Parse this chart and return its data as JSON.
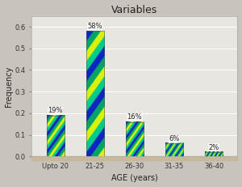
{
  "categories": [
    "Upto 20",
    "21-25",
    "26-30",
    "31-35",
    "36-40"
  ],
  "values": [
    0.19,
    0.58,
    0.16,
    0.06,
    0.02
  ],
  "labels": [
    "19%",
    "58%",
    "16%",
    "6%",
    "2%"
  ],
  "title": "Variables",
  "xlabel": "AGE (years)",
  "ylabel": "Frequency",
  "ylim": [
    0.0,
    0.65
  ],
  "yticks": [
    0.0,
    0.1,
    0.2,
    0.3,
    0.4,
    0.5,
    0.6
  ],
  "fig_bg_color": "#c8c4bc",
  "plot_bg_color": "#e8e6e0",
  "floor_color": "#c8b89a",
  "title_fontsize": 9,
  "label_fontsize": 6,
  "axis_label_fontsize": 7,
  "bar_width": 0.45
}
